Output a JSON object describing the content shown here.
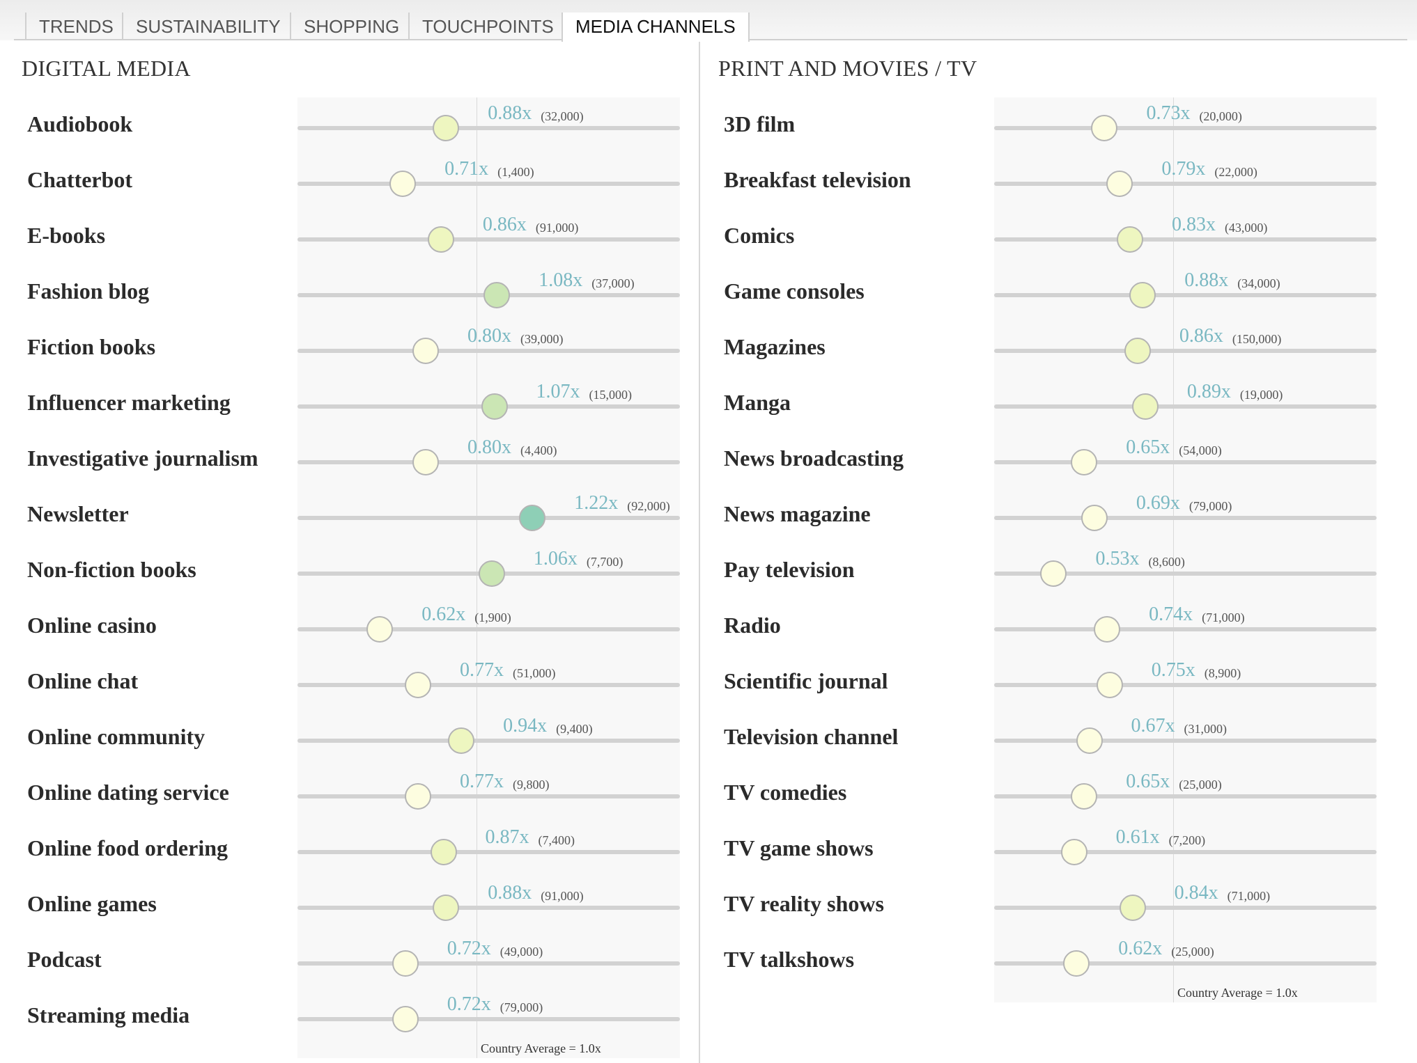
{
  "tabs": [
    {
      "label": "TRENDS",
      "active": false
    },
    {
      "label": "SUSTAINABILITY",
      "active": false
    },
    {
      "label": "SHOPPING",
      "active": false
    },
    {
      "label": "TOUCHPOINTS",
      "active": false
    },
    {
      "label": "MEDIA CHANNELS",
      "active": true
    }
  ],
  "colors": {
    "multiplier_text": "#7ab8c2",
    "track": "#d2d2d2",
    "dot_low": "#fdfde0",
    "dot_mid": "#eef6c0",
    "dot_high": "#cbe6b4",
    "dot_top": "#8ecfb6"
  },
  "panels": [
    {
      "title": "DIGITAL MEDIA",
      "avg_caption": "Country Average = 1.0x",
      "rows": [
        {
          "label": "Audiobook",
          "value": 0.88,
          "value_text": "0.88x",
          "count": "(32,000)"
        },
        {
          "label": "Chatterbot",
          "value": 0.71,
          "value_text": "0.71x",
          "count": "(1,400)"
        },
        {
          "label": "E-books",
          "value": 0.86,
          "value_text": "0.86x",
          "count": "(91,000)"
        },
        {
          "label": "Fashion blog",
          "value": 1.08,
          "value_text": "1.08x",
          "count": "(37,000)"
        },
        {
          "label": "Fiction books",
          "value": 0.8,
          "value_text": "0.80x",
          "count": "(39,000)"
        },
        {
          "label": "Influencer marketing",
          "value": 1.07,
          "value_text": "1.07x",
          "count": "(15,000)"
        },
        {
          "label": "Investigative journalism",
          "value": 0.8,
          "value_text": "0.80x",
          "count": "(4,400)"
        },
        {
          "label": "Newsletter",
          "value": 1.22,
          "value_text": "1.22x",
          "count": "(92,000)"
        },
        {
          "label": "Non-fiction books",
          "value": 1.06,
          "value_text": "1.06x",
          "count": "(7,700)"
        },
        {
          "label": "Online casino",
          "value": 0.62,
          "value_text": "0.62x",
          "count": "(1,900)"
        },
        {
          "label": "Online chat",
          "value": 0.77,
          "value_text": "0.77x",
          "count": "(51,000)"
        },
        {
          "label": "Online community",
          "value": 0.94,
          "value_text": "0.94x",
          "count": "(9,400)"
        },
        {
          "label": "Online dating service",
          "value": 0.77,
          "value_text": "0.77x",
          "count": "(9,800)"
        },
        {
          "label": "Online food ordering",
          "value": 0.87,
          "value_text": "0.87x",
          "count": "(7,400)"
        },
        {
          "label": "Online games",
          "value": 0.88,
          "value_text": "0.88x",
          "count": "(91,000)"
        },
        {
          "label": "Podcast",
          "value": 0.72,
          "value_text": "0.72x",
          "count": "(49,000)"
        },
        {
          "label": "Streaming media",
          "value": 0.72,
          "value_text": "0.72x",
          "count": "(79,000)"
        }
      ]
    },
    {
      "title": "PRINT AND MOVIES / TV",
      "avg_caption": "Country Average = 1.0x",
      "rows": [
        {
          "label": "3D film",
          "value": 0.73,
          "value_text": "0.73x",
          "count": "(20,000)"
        },
        {
          "label": "Breakfast television",
          "value": 0.79,
          "value_text": "0.79x",
          "count": "(22,000)"
        },
        {
          "label": "Comics",
          "value": 0.83,
          "value_text": "0.83x",
          "count": "(43,000)"
        },
        {
          "label": "Game consoles",
          "value": 0.88,
          "value_text": "0.88x",
          "count": "(34,000)"
        },
        {
          "label": "Magazines",
          "value": 0.86,
          "value_text": "0.86x",
          "count": "(150,000)"
        },
        {
          "label": "Manga",
          "value": 0.89,
          "value_text": "0.89x",
          "count": "(19,000)"
        },
        {
          "label": "News broadcasting",
          "value": 0.65,
          "value_text": "0.65x",
          "count": "(54,000)"
        },
        {
          "label": "News magazine",
          "value": 0.69,
          "value_text": "0.69x",
          "count": "(79,000)"
        },
        {
          "label": "Pay television",
          "value": 0.53,
          "value_text": "0.53x",
          "count": "(8,600)"
        },
        {
          "label": "Radio",
          "value": 0.74,
          "value_text": "0.74x",
          "count": "(71,000)"
        },
        {
          "label": "Scientific journal",
          "value": 0.75,
          "value_text": "0.75x",
          "count": "(8,900)"
        },
        {
          "label": "Television channel",
          "value": 0.67,
          "value_text": "0.67x",
          "count": "(31,000)"
        },
        {
          "label": "TV comedies",
          "value": 0.65,
          "value_text": "0.65x",
          "count": "(25,000)"
        },
        {
          "label": "TV game shows",
          "value": 0.61,
          "value_text": "0.61x",
          "count": "(7,200)"
        },
        {
          "label": "TV reality shows",
          "value": 0.84,
          "value_text": "0.84x",
          "count": "(71,000)"
        },
        {
          "label": "TV talkshows",
          "value": 0.62,
          "value_text": "0.62x",
          "count": "(25,000)"
        }
      ]
    }
  ]
}
